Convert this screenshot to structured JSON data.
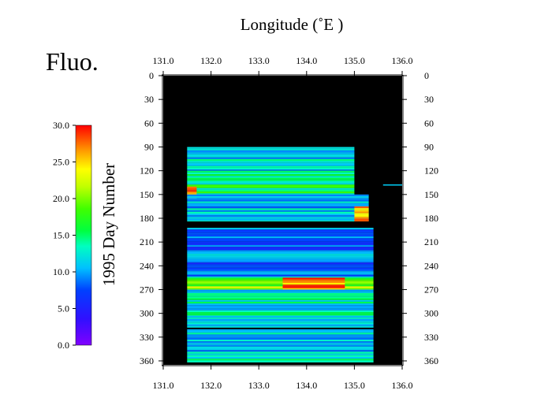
{
  "chart_data": {
    "type": "heatmap",
    "title": "Fluo.",
    "xlabel": "Longitude (˚E )",
    "ylabel": "1995  Day Number",
    "xlim": [
      131.0,
      136.0
    ],
    "ylim": [
      0,
      365
    ],
    "y_inverted": true,
    "x_ticks": [
      131.0,
      132.0,
      133.0,
      134.0,
      135.0,
      136.0
    ],
    "x_tick_labels": [
      "131.0",
      "132.0",
      "133.0",
      "134.0",
      "135.0",
      "136.0"
    ],
    "y_ticks": [
      0,
      30,
      60,
      90,
      120,
      150,
      180,
      210,
      240,
      270,
      300,
      330,
      360
    ],
    "y_tick_labels": [
      "0",
      "30",
      "60",
      "90",
      "120",
      "150",
      "180",
      "210",
      "240",
      "270",
      "300",
      "330",
      "360"
    ],
    "colorbar": {
      "min": 0.0,
      "max": 30.0,
      "ticks": [
        0.0,
        5.0,
        10.0,
        15.0,
        20.0,
        25.0,
        30.0
      ],
      "tick_labels": [
        "0.0",
        "5.0",
        "10.0",
        "15.0",
        "20.0",
        "25.0",
        "30.0"
      ],
      "colormap": "rainbow (violet-blue-cyan-green-yellow-red)"
    },
    "background_color": "#000000",
    "data_coverage": {
      "day_range": [
        90,
        362
      ],
      "lon_range": [
        131.5,
        135.4
      ],
      "gaps_days": [
        [
          184,
          192
        ],
        [
          318,
          320
        ]
      ]
    },
    "regions": [
      {
        "day_from": 90,
        "day_to": 120,
        "lon_from": 131.5,
        "lon_to": 135.0,
        "value": 12
      },
      {
        "day_from": 120,
        "day_to": 150,
        "lon_from": 131.5,
        "lon_to": 135.0,
        "value": 15
      },
      {
        "day_from": 140,
        "day_to": 155,
        "lon_from": 131.5,
        "lon_to": 131.7,
        "value": 28
      },
      {
        "day_from": 150,
        "day_to": 184,
        "lon_from": 131.5,
        "lon_to": 135.3,
        "value": 11
      },
      {
        "day_from": 165,
        "day_to": 184,
        "lon_from": 135.0,
        "lon_to": 135.3,
        "value": 27
      },
      {
        "day_from": 192,
        "day_to": 225,
        "lon_from": 131.5,
        "lon_to": 135.4,
        "value": 8
      },
      {
        "day_from": 225,
        "day_to": 255,
        "lon_from": 131.5,
        "lon_to": 135.4,
        "value": 9
      },
      {
        "day_from": 255,
        "day_to": 270,
        "lon_from": 131.5,
        "lon_to": 135.4,
        "value": 20
      },
      {
        "day_from": 255,
        "day_to": 270,
        "lon_from": 133.5,
        "lon_to": 134.8,
        "value": 27
      },
      {
        "day_from": 270,
        "day_to": 318,
        "lon_from": 131.5,
        "lon_to": 135.4,
        "value": 13
      },
      {
        "day_from": 320,
        "day_to": 362,
        "lon_from": 131.5,
        "lon_to": 135.4,
        "value": 12
      }
    ],
    "annotations": [
      {
        "day": 138,
        "lon_from": 135.6,
        "lon_to": 136.0,
        "value": 11
      }
    ]
  }
}
